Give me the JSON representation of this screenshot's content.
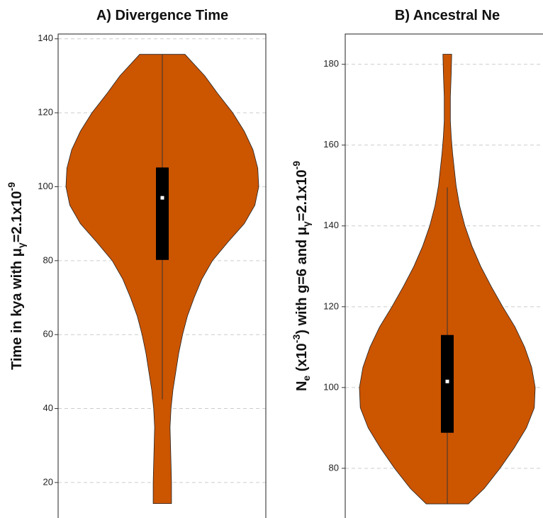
{
  "chart_data": [
    {
      "type": "violin",
      "title": "A) Divergence Time",
      "y_label": [
        "Time in kya with μ",
        "γ",
        "=2.1x10",
        "-9"
      ],
      "color": "#cc5500",
      "grid": true,
      "ylim": [
        10.4,
        141.3
      ],
      "yticks": [
        20,
        40,
        60,
        80,
        100,
        120,
        140
      ],
      "box": {
        "min": 42.5,
        "q1": 80.2,
        "median": 97,
        "q3": 105.2,
        "max": 135.8
      },
      "profile": {
        "y": [
          135.8,
          130,
          125,
          120,
          115,
          110,
          105,
          100,
          95,
          90,
          85,
          80,
          75,
          70,
          65,
          60,
          55,
          50,
          45,
          40,
          35,
          30,
          25,
          20,
          14.3
        ],
        "width": [
          0.235,
          0.44,
          0.58,
          0.73,
          0.85,
          0.94,
          0.99,
          1,
          0.96,
          0.85,
          0.68,
          0.52,
          0.41,
          0.33,
          0.26,
          0.21,
          0.17,
          0.14,
          0.11,
          0.09,
          0.08,
          0.085,
          0.09,
          0.095,
          0.095
        ]
      }
    },
    {
      "type": "violin",
      "title": "B) Ancestral Ne",
      "y_label": [
        "N",
        "e",
        " (x10",
        "-3",
        ") with g=6 and μ",
        "γ",
        "=2.1x10",
        "-9"
      ],
      "color": "#cc5500",
      "grid": true,
      "ylim": [
        67.7,
        187.5
      ],
      "yticks": [
        80,
        100,
        120,
        140,
        160,
        180
      ],
      "box": {
        "min": 71.2,
        "q1": 88.8,
        "median": 101.5,
        "q3": 113,
        "max": 149.5
      },
      "profile": {
        "y": [
          182.5,
          178,
          172,
          166,
          162,
          158,
          154,
          150,
          145,
          140,
          135,
          130,
          125,
          120,
          115,
          110,
          105,
          100,
          95,
          90,
          85,
          80,
          75,
          71.2
        ],
        "width": [
          0.05,
          0.045,
          0.035,
          0.035,
          0.045,
          0.06,
          0.08,
          0.1,
          0.14,
          0.2,
          0.28,
          0.38,
          0.5,
          0.63,
          0.77,
          0.88,
          0.96,
          1,
          0.99,
          0.9,
          0.76,
          0.6,
          0.42,
          0.24
        ]
      }
    }
  ]
}
